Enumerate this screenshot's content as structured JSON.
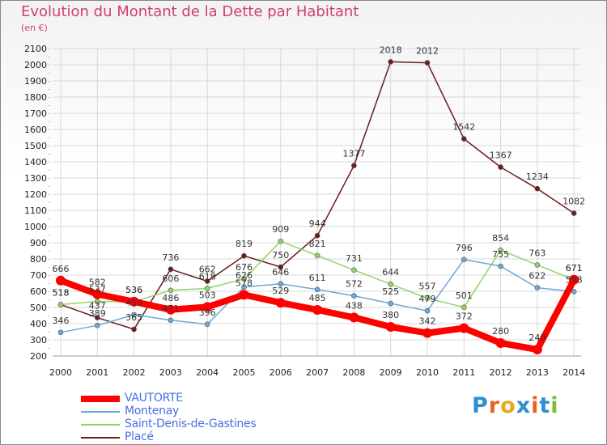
{
  "title": "Evolution du Montant de la Dette par Habitant",
  "unit_label": "(en €)",
  "brand": "Proxiti",
  "colors": {
    "title": "#d0406f",
    "grid": "#d8d8d8",
    "axis_text": "#222222",
    "legend_text": "#4a6fe0"
  },
  "chart_data": {
    "type": "line",
    "title": "Evolution du Montant de la Dette par Habitant",
    "ylabel": "(en €)",
    "xlabel": "",
    "x": [
      2000,
      2001,
      2002,
      2003,
      2004,
      2005,
      2006,
      2007,
      2008,
      2009,
      2010,
      2011,
      2012,
      2013,
      2014
    ],
    "ylim": [
      200,
      2100
    ],
    "yticks": [
      200,
      300,
      400,
      500,
      600,
      700,
      800,
      900,
      1000,
      1100,
      1200,
      1300,
      1400,
      1500,
      1600,
      1700,
      1800,
      1900,
      2000,
      2100
    ],
    "grid": true,
    "legend_position": "bottom-left",
    "series": [
      {
        "name": "VAUTORTE",
        "color": "#ff0000",
        "width": 8,
        "values": [
          666,
          582,
          536,
          486,
          503,
          578,
          529,
          485,
          438,
          380,
          342,
          372,
          280,
          240,
          671
        ]
      },
      {
        "name": "Montenay",
        "color": "#6ea7d8",
        "width": 1.5,
        "values": [
          346,
          389,
          455,
          421,
          396,
          626,
          646,
          611,
          572,
          525,
          479,
          796,
          755,
          622,
          598
        ]
      },
      {
        "name": "Saint-Denis-de-Gastines",
        "color": "#92d36a",
        "width": 1.5,
        "values": [
          518,
          537,
          536,
          606,
          618,
          676,
          909,
          821,
          731,
          644,
          557,
          501,
          854,
          763,
          671
        ]
      },
      {
        "name": "Placé",
        "color": "#6b1c1c",
        "width": 1.5,
        "values": [
          518,
          437,
          365,
          736,
          662,
          819,
          750,
          944,
          1377,
          2018,
          2012,
          1542,
          1367,
          1234,
          1082
        ]
      }
    ]
  }
}
